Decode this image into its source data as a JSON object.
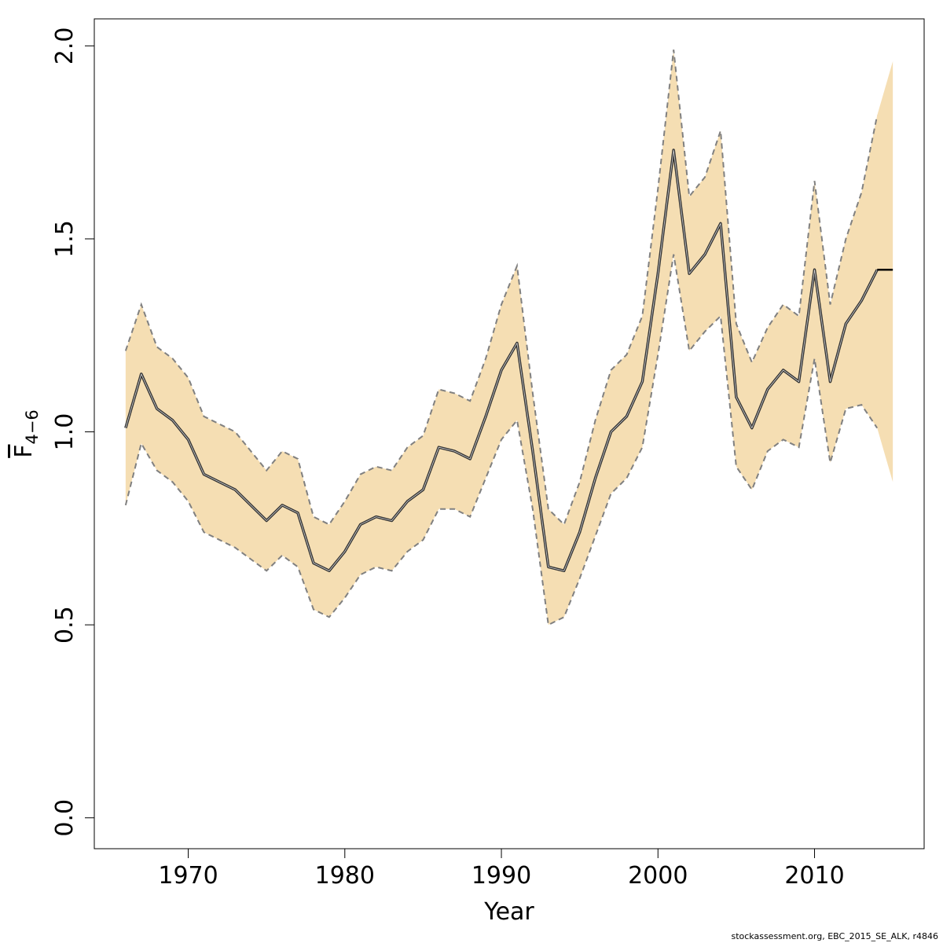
{
  "chart_data": {
    "type": "line",
    "title": "",
    "xlabel": "Year",
    "ylabel_main": "F",
    "ylabel_sub": "4−6",
    "xlim": [
      1964,
      2017
    ],
    "ylim": [
      -0.08,
      2.07
    ],
    "x_ticks": [
      1970,
      1980,
      1990,
      2000,
      2010
    ],
    "y_ticks": [
      0.0,
      0.5,
      1.0,
      1.5,
      2.0
    ],
    "y_tick_labels": [
      "0.0",
      "0.5",
      "1.0",
      "1.5",
      "2.0"
    ],
    "band_color": "#f5deb3",
    "line_color": "#000000",
    "bound_color": "#808080",
    "grid": false,
    "x": [
      1966,
      1967,
      1968,
      1969,
      1970,
      1971,
      1972,
      1973,
      1974,
      1975,
      1976,
      1977,
      1978,
      1979,
      1980,
      1981,
      1982,
      1983,
      1984,
      1985,
      1986,
      1987,
      1988,
      1989,
      1990,
      1991,
      1992,
      1993,
      1994,
      1995,
      1996,
      1997,
      1998,
      1999,
      2000,
      2001,
      2002,
      2003,
      2004,
      2005,
      2006,
      2007,
      2008,
      2009,
      2010,
      2011,
      2012,
      2013,
      2014,
      2015
    ],
    "series": [
      {
        "role": "estimate",
        "values": [
          1.01,
          1.15,
          1.06,
          1.03,
          0.98,
          0.89,
          0.87,
          0.85,
          0.81,
          0.77,
          0.81,
          0.79,
          0.66,
          0.64,
          0.69,
          0.76,
          0.78,
          0.77,
          0.82,
          0.85,
          0.96,
          0.95,
          0.93,
          1.04,
          1.16,
          1.23,
          0.95,
          0.65,
          0.64,
          0.74,
          0.88,
          1.0,
          1.04,
          1.13,
          1.41,
          1.73,
          1.41,
          1.46,
          1.54,
          1.09,
          1.01,
          1.11,
          1.16,
          1.13,
          1.42,
          1.13,
          1.28,
          1.34,
          1.42,
          1.42
        ]
      },
      {
        "role": "upper",
        "values": [
          1.21,
          1.33,
          1.22,
          1.19,
          1.14,
          1.04,
          1.02,
          1.0,
          0.95,
          0.9,
          0.95,
          0.93,
          0.78,
          0.76,
          0.82,
          0.89,
          0.91,
          0.9,
          0.96,
          0.99,
          1.11,
          1.1,
          1.08,
          1.19,
          1.33,
          1.43,
          1.1,
          0.8,
          0.76,
          0.87,
          1.03,
          1.16,
          1.2,
          1.3,
          1.63,
          1.99,
          1.61,
          1.66,
          1.78,
          1.28,
          1.18,
          1.27,
          1.33,
          1.3,
          1.65,
          1.33,
          1.5,
          1.62,
          1.82,
          1.96
        ]
      },
      {
        "role": "lower",
        "values": [
          0.81,
          0.97,
          0.9,
          0.87,
          0.82,
          0.74,
          0.72,
          0.7,
          0.67,
          0.64,
          0.68,
          0.65,
          0.54,
          0.52,
          0.57,
          0.63,
          0.65,
          0.64,
          0.69,
          0.72,
          0.8,
          0.8,
          0.78,
          0.88,
          0.98,
          1.03,
          0.8,
          0.5,
          0.52,
          0.62,
          0.73,
          0.84,
          0.88,
          0.96,
          1.2,
          1.46,
          1.21,
          1.26,
          1.3,
          0.91,
          0.85,
          0.95,
          0.98,
          0.96,
          1.19,
          0.92,
          1.06,
          1.07,
          1.01,
          0.87
        ]
      }
    ]
  },
  "footer": "stockassessment.org, EBC_2015_SE_ALK, r4846"
}
